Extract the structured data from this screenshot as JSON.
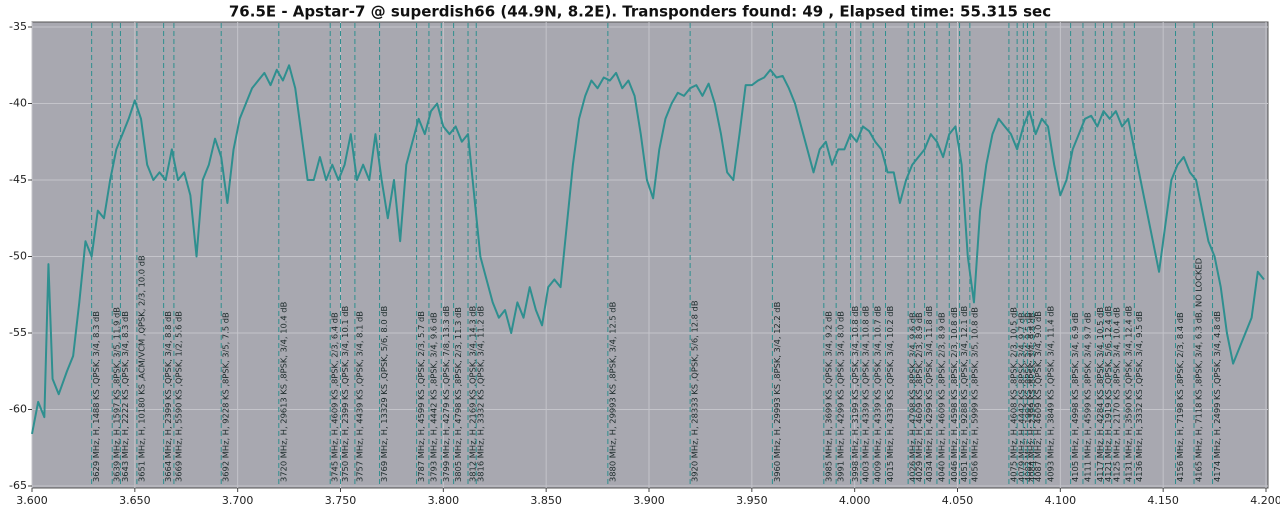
{
  "chart_data": {
    "type": "line",
    "title": "76.5E - Apstar-7 @ superdish66 (44.9N, 8.2E). Transponders found: 49 , Elapsed time: 55.315 sec",
    "xlim": [
      3.6,
      4.2
    ],
    "xticks": [
      {
        "value": 3.6,
        "label": "3.600"
      },
      {
        "value": 3.65,
        "label": "3.650"
      },
      {
        "value": 3.7,
        "label": "3.700"
      },
      {
        "value": 3.75,
        "label": "3.750"
      },
      {
        "value": 3.8,
        "label": "3.800"
      },
      {
        "value": 3.85,
        "label": "3.850"
      },
      {
        "value": 3.9,
        "label": "3.900"
      },
      {
        "value": 3.95,
        "label": "3.950"
      },
      {
        "value": 4.0,
        "label": "4.000"
      },
      {
        "value": 4.05,
        "label": "4.050"
      },
      {
        "value": 4.1,
        "label": "4.100"
      },
      {
        "value": 4.15,
        "label": "4.150"
      },
      {
        "value": 4.2,
        "label": "4.200"
      }
    ],
    "ylim": [
      -65,
      -35
    ],
    "yticks": [
      -35,
      -40,
      -45,
      -50,
      -55,
      -60,
      -65
    ],
    "grid": true,
    "color": "#2f8f8f",
    "x": [
      3.6,
      3.603,
      3.606,
      3.608,
      3.61,
      3.613,
      3.617,
      3.62,
      3.623,
      3.626,
      3.629,
      3.632,
      3.635,
      3.638,
      3.641,
      3.644,
      3.647,
      3.65,
      3.653,
      3.656,
      3.659,
      3.662,
      3.665,
      3.668,
      3.671,
      3.674,
      3.677,
      3.68,
      3.683,
      3.686,
      3.689,
      3.692,
      3.695,
      3.698,
      3.701,
      3.704,
      3.707,
      3.71,
      3.713,
      3.716,
      3.719,
      3.722,
      3.725,
      3.728,
      3.731,
      3.734,
      3.737,
      3.74,
      3.743,
      3.746,
      3.749,
      3.752,
      3.755,
      3.758,
      3.761,
      3.764,
      3.767,
      3.77,
      3.773,
      3.776,
      3.779,
      3.782,
      3.785,
      3.788,
      3.791,
      3.794,
      3.797,
      3.8,
      3.803,
      3.806,
      3.809,
      3.812,
      3.815,
      3.818,
      3.821,
      3.824,
      3.827,
      3.83,
      3.833,
      3.836,
      3.839,
      3.842,
      3.845,
      3.848,
      3.851,
      3.854,
      3.857,
      3.86,
      3.863,
      3.866,
      3.869,
      3.872,
      3.875,
      3.878,
      3.881,
      3.884,
      3.887,
      3.89,
      3.893,
      3.896,
      3.899,
      3.902,
      3.905,
      3.908,
      3.911,
      3.914,
      3.917,
      3.92,
      3.923,
      3.926,
      3.929,
      3.932,
      3.935,
      3.938,
      3.941,
      3.944,
      3.947,
      3.95,
      3.953,
      3.956,
      3.959,
      3.962,
      3.965,
      3.968,
      3.971,
      3.974,
      3.977,
      3.98,
      3.983,
      3.986,
      3.989,
      3.992,
      3.995,
      3.998,
      4.001,
      4.004,
      4.007,
      4.01,
      4.013,
      4.016,
      4.019,
      4.022,
      4.025,
      4.028,
      4.031,
      4.034,
      4.037,
      4.04,
      4.043,
      4.046,
      4.049,
      4.052,
      4.055,
      4.058,
      4.061,
      4.064,
      4.067,
      4.07,
      4.073,
      4.076,
      4.079,
      4.082,
      4.085,
      4.088,
      4.091,
      4.094,
      4.097,
      4.1,
      4.103,
      4.106,
      4.109,
      4.112,
      4.115,
      4.118,
      4.121,
      4.124,
      4.127,
      4.13,
      4.133,
      4.136,
      4.139,
      4.142,
      4.145,
      4.148,
      4.151,
      4.154,
      4.157,
      4.16,
      4.163,
      4.166,
      4.169,
      4.172,
      4.175,
      4.178,
      4.181,
      4.184,
      4.187,
      4.19,
      4.193,
      4.196,
      4.199
    ],
    "values": [
      -61.6,
      -59.5,
      -60.5,
      -50.5,
      -58,
      -59,
      -57.5,
      -56.5,
      -53,
      -49,
      -50,
      -47,
      -47.5,
      -45,
      -43,
      -42,
      -41,
      -39.8,
      -41,
      -44,
      -45,
      -44.5,
      -45,
      -43,
      -45,
      -44.5,
      -46,
      -50,
      -45,
      -44,
      -42.3,
      -43.5,
      -46.5,
      -43,
      -41,
      -40,
      -39,
      -38.5,
      -38,
      -38.8,
      -37.8,
      -38.5,
      -37.5,
      -39,
      -42,
      -45,
      -45,
      -43.5,
      -45,
      -44,
      -45,
      -44,
      -42,
      -45,
      -44,
      -45,
      -42,
      -45,
      -47.5,
      -45,
      -49,
      -44,
      -42.5,
      -41,
      -42,
      -40.5,
      -40,
      -41.5,
      -42,
      -41.5,
      -42.5,
      -42,
      -46,
      -50,
      -51.5,
      -53,
      -54,
      -53.5,
      -55,
      -53,
      -54,
      -52,
      -53.5,
      -54.5,
      -52,
      -51.5,
      -52,
      -48,
      -44,
      -41,
      -39.5,
      -38.5,
      -39,
      -38.3,
      -38.5,
      -38,
      -39,
      -38.5,
      -39.5,
      -42,
      -45,
      -46.2,
      -43,
      -41,
      -40,
      -39.3,
      -39.5,
      -39,
      -38.8,
      -39.5,
      -38.7,
      -40,
      -42,
      -44.5,
      -45,
      -42,
      -38.8,
      -38.8,
      -38.5,
      -38.3,
      -37.8,
      -38.3,
      -38.2,
      -39,
      -40,
      -41.5,
      -43,
      -44.5,
      -43,
      -42.5,
      -44,
      -43,
      -43,
      -42,
      -42.5,
      -41.5,
      -41.8,
      -42.5,
      -43,
      -44.5,
      -44.5,
      -46.5,
      -45,
      -44,
      -43.5,
      -43,
      -42,
      -42.5,
      -43.5,
      -42,
      -41.5,
      -44,
      -50,
      -53,
      -47,
      -44,
      -42,
      -41,
      -41.5,
      -42,
      -43,
      -41.5,
      -40.5,
      -42,
      -41,
      -41.5,
      -44,
      -46,
      -45,
      -43,
      -42,
      -41,
      -40.8,
      -41.5,
      -40.5,
      -41,
      -40.5,
      -41.5,
      -41,
      -43,
      -45,
      -47,
      -49,
      -51,
      -48,
      -45,
      -44,
      -43.5,
      -44.5,
      -45,
      -47,
      -49,
      -50,
      -52,
      -55,
      -57,
      -56,
      -55,
      -54,
      -51,
      -51.5
    ],
    "markers": [
      {
        "x": 3.629,
        "label": "3629 MHz, H, 1488 KS ,QPSK, 3/4, 8.3 dB"
      },
      {
        "x": 3.639,
        "label": "3639 MHz, H, 1597 KS ,8PSK, 3/5, 11.9 dB"
      },
      {
        "x": 3.643,
        "label": "3643 MHz, H, 2222 KS ,QPSK, 3/4, 8.3 dB"
      },
      {
        "x": 3.651,
        "label": "3651 MHz, H, 10180 KS ,ACM/VCM ,QPSK, 2/3, 10.0 dB"
      },
      {
        "x": 3.664,
        "label": "3664 MHz, H, 2399 KS ,QPSK, 3/4, 8.8 dB"
      },
      {
        "x": 3.669,
        "label": "3669 MHz, H, 5590 KS ,QPSK, 1/2, 5.6 dB"
      },
      {
        "x": 3.692,
        "label": "3692 MHz, H, 9228 KS ,8PSK, 3/5, 7.5 dB"
      },
      {
        "x": 3.72,
        "label": "3720 MHz, H, 29613 KS ,8PSK, 3/4, 10.4 dB"
      },
      {
        "x": 3.745,
        "label": "3745 MHz, H, 4609 KS ,8PSK, 2/3, 6.4 dB"
      },
      {
        "x": 3.75,
        "label": "3750 MHz, H, 2399 KS ,QPSK, 3/4, 10.1 dB"
      },
      {
        "x": 3.757,
        "label": "3757 MHz, H, 4439 KS ,QPSK, 3/4, 8.1 dB"
      },
      {
        "x": 3.769,
        "label": "3769 MHz, H, 13329 KS ,QPSK, 5/6, 8.0 dB"
      },
      {
        "x": 3.787,
        "label": "3787 MHz, H, 4599 KS ,QPSK, 2/3, 5.7 dB"
      },
      {
        "x": 3.793,
        "label": "3793 MHz, H, 4442 KS ,8PSK, 3/4, 9.6 dB"
      },
      {
        "x": 3.799,
        "label": "3799 MHz, H, 4279 KS ,QPSK, 7/8, 13.3 dB"
      },
      {
        "x": 3.805,
        "label": "3805 MHz, H, 4798 KS ,8PSK, 2/3, 11.3 dB"
      },
      {
        "x": 3.812,
        "label": "3812 MHz, H, 2169 KS ,QPSK, 3/4, 14.3 dB"
      },
      {
        "x": 3.816,
        "label": "3816 MHz, H, 3332 KS ,QPSK, 3/4, 11.2 dB"
      },
      {
        "x": 3.88,
        "label": "3880 MHz, H, 29993 KS ,8PSK, 3/4, 12.5 dB"
      },
      {
        "x": 3.92,
        "label": "3920 MHz, H, 28333 KS ,QPSK, 5/6, 12.8 dB"
      },
      {
        "x": 3.96,
        "label": "3960 MHz, H, 29993 KS ,8PSK, 3/4, 12.2 dB"
      },
      {
        "x": 3.985,
        "label": "3985 MHz, H, 3699 KS ,QPSK, 3/4, 9.2 dB"
      },
      {
        "x": 3.991,
        "label": "3991 MHz, H, 4299 KS ,QPSK, 3/4, 8.0 dB"
      },
      {
        "x": 3.998,
        "label": "3998 MHz, H, 3199 KS ,QPSK, 3/4, 10.8 dB"
      },
      {
        "x": 4.003,
        "label": "4003 MHz, H, 4339 KS ,QPSK, 3/4, 10.8 dB"
      },
      {
        "x": 4.009,
        "label": "4009 MHz, H, 4339 KS ,QPSK, 3/4, 10.7 dB"
      },
      {
        "x": 4.015,
        "label": "4015 MHz, H, 4339 KS ,QPSK, 3/4, 10.2 dB"
      },
      {
        "x": 4.026,
        "label": "4026 MHz, H, 4798 KS ,8PSK, 3/4, 9.6 dB"
      },
      {
        "x": 4.029,
        "label": "4029 MHz, H, 4609 KS ,8PSK, 2/3, 8.9 dB"
      },
      {
        "x": 4.034,
        "label": "4034 MHz, H, 4299 KS ,QPSK, 3/4, 11.8 dB"
      },
      {
        "x": 4.04,
        "label": "4040 MHz, H, 4609 KS ,8PSK, 2/3, 8.9 dB"
      },
      {
        "x": 4.046,
        "label": "4046 MHz, H, 4598 KS ,8PSK, 2/3, 10.8 dB"
      },
      {
        "x": 4.051,
        "label": "4051 MHz, H, 9288 KS ,QPSK, 3/4, 12.1 dB"
      },
      {
        "x": 4.056,
        "label": "4056 MHz, H, 5999 KS ,8PSK, 3/5, 10.8 dB"
      },
      {
        "x": 4.075,
        "label": "4075 MHz, H, 4608 KS ,8PSK, 2/3, 10.5 dB"
      },
      {
        "x": 4.079,
        "label": "4079 MHz, H, 4442 KS ,8PSK, 3/4, 9.7 dB"
      },
      {
        "x": 4.082,
        "label": "4082 MHz, H, 1992 KS ,8PSK, 3/4, 9.5 dB"
      },
      {
        "x": 4.084,
        "label": "4084 MHz, H, 2399 KS ,8PSK, 3/4, 9.8 dB"
      },
      {
        "x": 4.087,
        "label": "4087 MHz, H, 4609 KS ,QPSK, 3/4, 9.0 dB"
      },
      {
        "x": 4.093,
        "label": "4093 MHz, H, 3849 KS ,QPSK, 3/4, 11.4 dB"
      },
      {
        "x": 4.105,
        "label": "4105 MHz, H, 4998 KS ,8PSK, 3/4, 6.9 dB"
      },
      {
        "x": 4.111,
        "label": "4111 MHz, H, 4599 KS ,8PSK, 3/4, 9.7 dB"
      },
      {
        "x": 4.117,
        "label": "4117 MHz, H, 4284 KS ,8PSK, 3/4, 10.5 dB"
      },
      {
        "x": 4.121,
        "label": "4121 MHz, H, 1919 KS ,QPSK, 5/6, 12.4 dB"
      },
      {
        "x": 4.125,
        "label": "4125 MHz, H, 2170 KS ,8PSK, 3/4, 10.4 dB"
      },
      {
        "x": 4.131,
        "label": "4131 MHz, H, 3590 KS ,QPSK, 3/4, 12.4 dB"
      },
      {
        "x": 4.136,
        "label": "4136 MHz, H, 3332 KS ,QPSK, 3/4, 9.5 dB"
      },
      {
        "x": 4.156,
        "label": "4156 MHz, H, 7198 KS ,8PSK, 2/3, 8.4 dB"
      },
      {
        "x": 4.165,
        "label": "4165 MHz, H, 7118 KS ,8PSK, 3/4, 6.3 dB, NO LOCKED"
      },
      {
        "x": 4.174,
        "label": "4174 MHz, H, 2499 KS ,QPSK, 3/4, 4.8 dB"
      }
    ]
  }
}
